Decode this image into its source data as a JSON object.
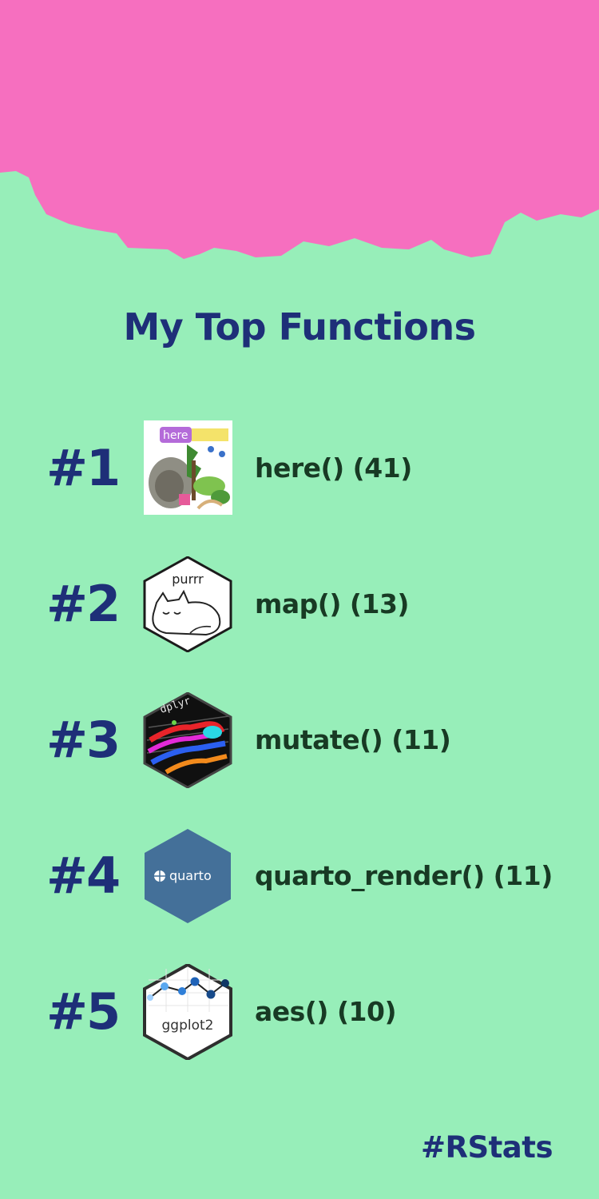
{
  "title": "My Top Functions",
  "colors": {
    "background": "#97eeb9",
    "splash": "#f66fbf",
    "title": "#1e2f78",
    "function_text": "#183a24"
  },
  "functions": [
    {
      "rank": "#1",
      "name": "here() (41)",
      "logo_icon": "here-logo-icon",
      "logo_text": "here"
    },
    {
      "rank": "#2",
      "name": "map() (13)",
      "logo_icon": "purrr-logo-icon",
      "logo_text": "purrr"
    },
    {
      "rank": "#3",
      "name": "mutate() (11)",
      "logo_icon": "dplyr-logo-icon",
      "logo_text": "dplyr"
    },
    {
      "rank": "#4",
      "name": "quarto_render() (11)",
      "logo_icon": "quarto-logo-icon",
      "logo_text": "quarto"
    },
    {
      "rank": "#5",
      "name": "aes() (10)",
      "logo_icon": "ggplot2-logo-icon",
      "logo_text": "ggplot2"
    }
  ],
  "footer": "#RStats"
}
